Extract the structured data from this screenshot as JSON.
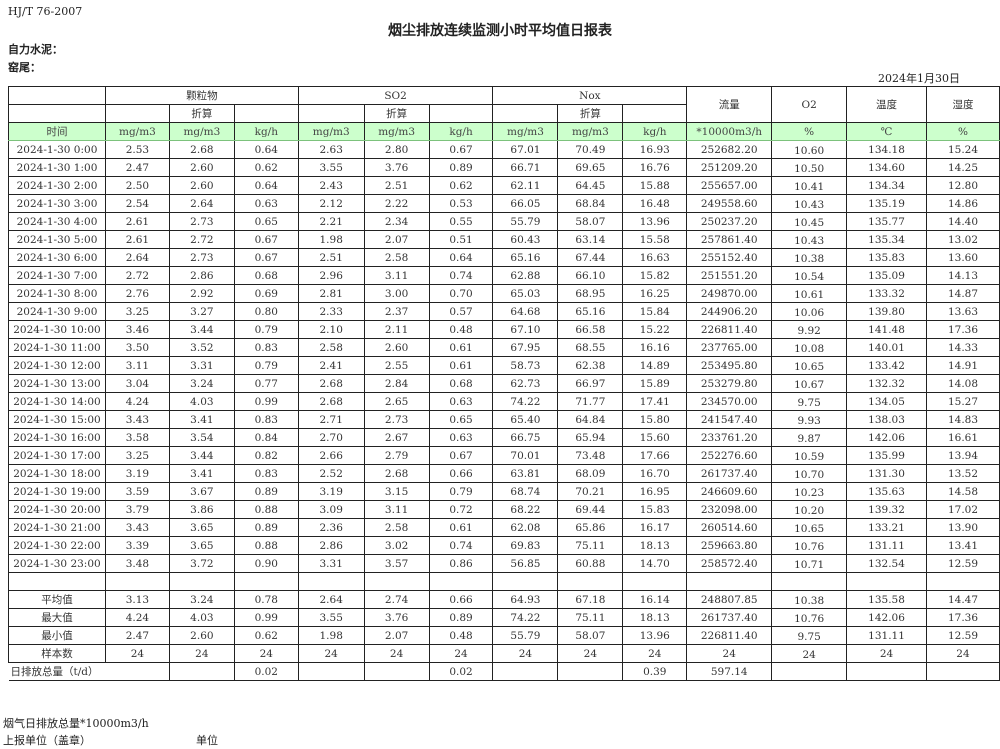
{
  "standard": "HJ/T  76-2007",
  "title": "烟尘排放连续监测小时平均值日报表",
  "company": "自力水泥：",
  "kiln": "窑尾：",
  "date": "2024年1月30日",
  "header": {
    "groups": [
      "颗粒物",
      "SO2",
      "Nox"
    ],
    "converted": "折算",
    "flow": "流量",
    "o2": "O2",
    "temperature": "温度",
    "humidity": "湿度",
    "units": [
      "时间",
      "mg/m3",
      "mg/m3",
      "kg/h",
      "mg/m3",
      "mg/m3",
      "kg/h",
      "mg/m3",
      "mg/m3",
      "kg/h",
      "*10000m3/h",
      "%",
      "℃",
      "%"
    ]
  },
  "rows": [
    [
      "2024-1-30 0:00",
      "2.53",
      "2.68",
      "0.64",
      "2.63",
      "2.80",
      "0.67",
      "67.01",
      "70.49",
      "16.93",
      "252682.20",
      "10.60",
      "134.18",
      "15.24"
    ],
    [
      "2024-1-30 1:00",
      "2.47",
      "2.60",
      "0.62",
      "3.55",
      "3.76",
      "0.89",
      "66.71",
      "69.65",
      "16.76",
      "251209.20",
      "10.50",
      "134.60",
      "14.25"
    ],
    [
      "2024-1-30 2:00",
      "2.50",
      "2.60",
      "0.64",
      "2.43",
      "2.51",
      "0.62",
      "62.11",
      "64.45",
      "15.88",
      "255657.00",
      "10.41",
      "134.34",
      "12.80"
    ],
    [
      "2024-1-30 3:00",
      "2.54",
      "2.64",
      "0.63",
      "2.12",
      "2.22",
      "0.53",
      "66.05",
      "68.84",
      "16.48",
      "249558.60",
      "10.43",
      "135.19",
      "14.86"
    ],
    [
      "2024-1-30 4:00",
      "2.61",
      "2.73",
      "0.65",
      "2.21",
      "2.34",
      "0.55",
      "55.79",
      "58.07",
      "13.96",
      "250237.20",
      "10.45",
      "135.77",
      "14.40"
    ],
    [
      "2024-1-30 5:00",
      "2.61",
      "2.72",
      "0.67",
      "1.98",
      "2.07",
      "0.51",
      "60.43",
      "63.14",
      "15.58",
      "257861.40",
      "10.43",
      "135.34",
      "13.02"
    ],
    [
      "2024-1-30 6:00",
      "2.64",
      "2.73",
      "0.67",
      "2.51",
      "2.58",
      "0.64",
      "65.16",
      "67.44",
      "16.63",
      "255152.40",
      "10.38",
      "135.83",
      "13.60"
    ],
    [
      "2024-1-30 7:00",
      "2.72",
      "2.86",
      "0.68",
      "2.96",
      "3.11",
      "0.74",
      "62.88",
      "66.10",
      "15.82",
      "251551.20",
      "10.54",
      "135.09",
      "14.13"
    ],
    [
      "2024-1-30 8:00",
      "2.76",
      "2.92",
      "0.69",
      "2.81",
      "3.00",
      "0.70",
      "65.03",
      "68.95",
      "16.25",
      "249870.00",
      "10.61",
      "133.32",
      "14.87"
    ],
    [
      "2024-1-30 9:00",
      "3.25",
      "3.27",
      "0.80",
      "2.33",
      "2.37",
      "0.57",
      "64.68",
      "65.16",
      "15.84",
      "244906.20",
      "10.06",
      "139.80",
      "13.63"
    ],
    [
      "2024-1-30 10:00",
      "3.46",
      "3.44",
      "0.79",
      "2.10",
      "2.11",
      "0.48",
      "67.10",
      "66.58",
      "15.22",
      "226811.40",
      "9.92",
      "141.48",
      "17.36"
    ],
    [
      "2024-1-30 11:00",
      "3.50",
      "3.52",
      "0.83",
      "2.58",
      "2.60",
      "0.61",
      "67.95",
      "68.55",
      "16.16",
      "237765.00",
      "10.08",
      "140.01",
      "14.33"
    ],
    [
      "2024-1-30 12:00",
      "3.11",
      "3.31",
      "0.79",
      "2.41",
      "2.55",
      "0.61",
      "58.73",
      "62.38",
      "14.89",
      "253495.80",
      "10.65",
      "133.42",
      "14.91"
    ],
    [
      "2024-1-30 13:00",
      "3.04",
      "3.24",
      "0.77",
      "2.68",
      "2.84",
      "0.68",
      "62.73",
      "66.97",
      "15.89",
      "253279.80",
      "10.67",
      "132.32",
      "14.08"
    ],
    [
      "2024-1-30 14:00",
      "4.24",
      "4.03",
      "0.99",
      "2.68",
      "2.65",
      "0.63",
      "74.22",
      "71.77",
      "17.41",
      "234570.00",
      "9.75",
      "134.05",
      "15.27"
    ],
    [
      "2024-1-30 15:00",
      "3.43",
      "3.41",
      "0.83",
      "2.71",
      "2.73",
      "0.65",
      "65.40",
      "64.84",
      "15.80",
      "241547.40",
      "9.93",
      "138.03",
      "14.83"
    ],
    [
      "2024-1-30 16:00",
      "3.58",
      "3.54",
      "0.84",
      "2.70",
      "2.67",
      "0.63",
      "66.75",
      "65.94",
      "15.60",
      "233761.20",
      "9.87",
      "142.06",
      "16.61"
    ],
    [
      "2024-1-30 17:00",
      "3.25",
      "3.44",
      "0.82",
      "2.66",
      "2.79",
      "0.67",
      "70.01",
      "73.48",
      "17.66",
      "252276.60",
      "10.59",
      "135.99",
      "13.94"
    ],
    [
      "2024-1-30 18:00",
      "3.19",
      "3.41",
      "0.83",
      "2.52",
      "2.68",
      "0.66",
      "63.81",
      "68.09",
      "16.70",
      "261737.40",
      "10.70",
      "131.30",
      "13.52"
    ],
    [
      "2024-1-30 19:00",
      "3.59",
      "3.67",
      "0.89",
      "3.19",
      "3.15",
      "0.79",
      "68.74",
      "70.21",
      "16.95",
      "246609.60",
      "10.23",
      "135.63",
      "14.58"
    ],
    [
      "2024-1-30 20:00",
      "3.79",
      "3.86",
      "0.88",
      "3.09",
      "3.11",
      "0.72",
      "68.22",
      "69.44",
      "15.83",
      "232098.00",
      "10.20",
      "139.32",
      "17.02"
    ],
    [
      "2024-1-30 21:00",
      "3.43",
      "3.65",
      "0.89",
      "2.36",
      "2.58",
      "0.61",
      "62.08",
      "65.86",
      "16.17",
      "260514.60",
      "10.65",
      "133.21",
      "13.90"
    ],
    [
      "2024-1-30 22:00",
      "3.39",
      "3.65",
      "0.88",
      "2.86",
      "3.02",
      "0.74",
      "69.83",
      "75.11",
      "18.13",
      "259663.80",
      "10.76",
      "131.11",
      "13.41"
    ],
    [
      "2024-1-30 23:00",
      "3.48",
      "3.72",
      "0.90",
      "3.31",
      "3.57",
      "0.86",
      "56.85",
      "60.88",
      "14.70",
      "258572.40",
      "10.71",
      "132.54",
      "12.59"
    ]
  ],
  "stats": [
    [
      "平均值",
      "3.13",
      "3.24",
      "0.78",
      "2.64",
      "2.74",
      "0.66",
      "64.93",
      "67.18",
      "16.14",
      "248807.85",
      "10.38",
      "135.58",
      "14.47"
    ],
    [
      "最大值",
      "4.24",
      "4.03",
      "0.99",
      "3.55",
      "3.76",
      "0.89",
      "74.22",
      "75.11",
      "18.13",
      "261737.40",
      "10.76",
      "142.06",
      "17.36"
    ],
    [
      "最小值",
      "2.47",
      "2.60",
      "0.62",
      "1.98",
      "2.07",
      "0.48",
      "55.79",
      "58.07",
      "13.96",
      "226811.40",
      "9.75",
      "131.11",
      "12.59"
    ],
    [
      "样本数",
      "24",
      "24",
      "24",
      "24",
      "24",
      "24",
      "24",
      "24",
      "24",
      "24",
      "24",
      "24",
      "24"
    ]
  ],
  "daily_total": {
    "label": "日排放总量（t/d）",
    "values": [
      "",
      "0.02",
      "",
      "",
      "0.02",
      "",
      "",
      "0.39",
      "597.14",
      "",
      "",
      ""
    ]
  },
  "footer": {
    "flue_total": "烟气日排放总量*10000m3/h",
    "reporting_unit": "上报单位（盖章）",
    "unit": "单位"
  },
  "colors": {
    "unit_row_bg": "#ccffcc"
  }
}
